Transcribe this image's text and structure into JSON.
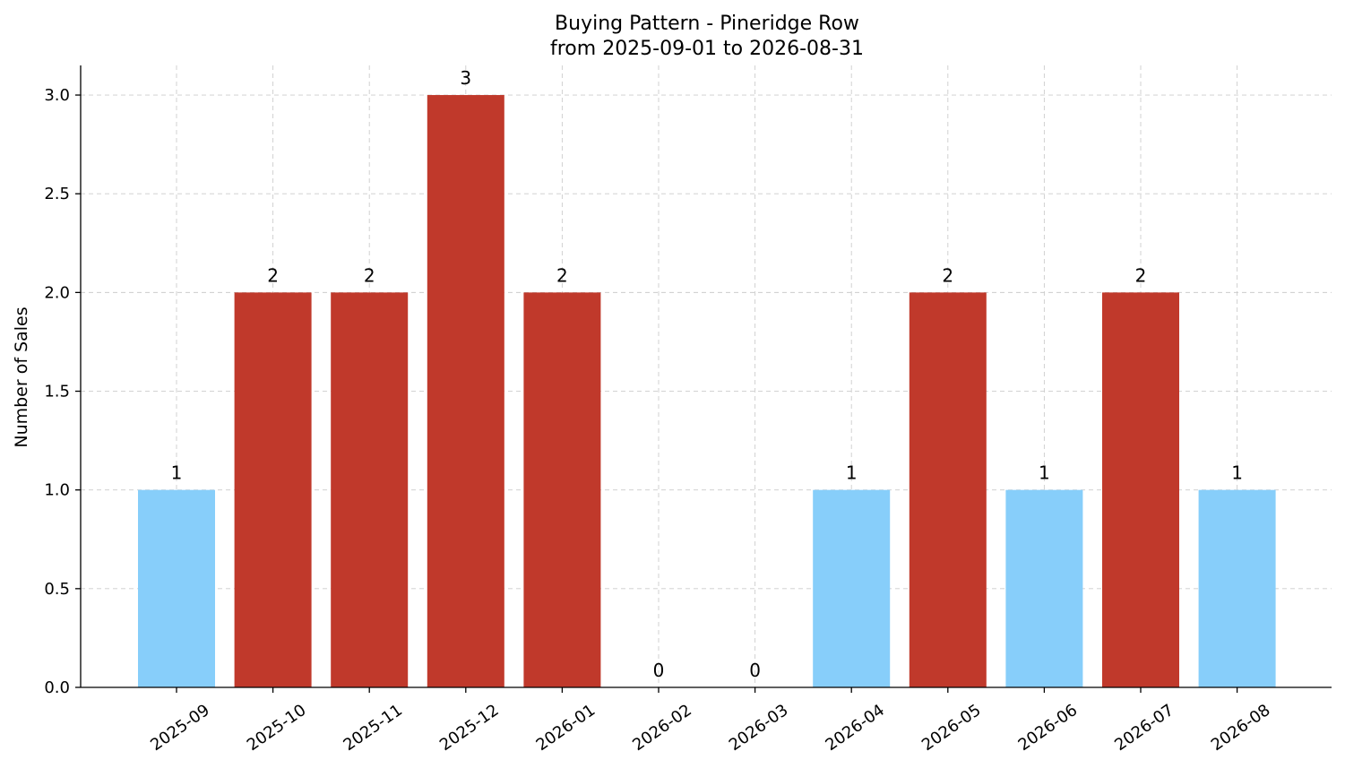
{
  "chart_data": {
    "type": "bar",
    "title": "Buying Pattern - Pineridge Row",
    "subtitle": "from 2025-09-01 to 2026-08-31",
    "xlabel": "",
    "ylabel": "Number of Sales",
    "categories": [
      "2025-09",
      "2025-10",
      "2025-11",
      "2025-12",
      "2026-01",
      "2026-02",
      "2026-03",
      "2026-04",
      "2026-05",
      "2026-06",
      "2026-07",
      "2026-08"
    ],
    "values": [
      1,
      2,
      2,
      3,
      2,
      0,
      0,
      1,
      2,
      1,
      2,
      1
    ],
    "data_labels": [
      "1",
      "2",
      "2",
      "3",
      "2",
      "0",
      "0",
      "1",
      "2",
      "1",
      "2",
      "1"
    ],
    "ylim": [
      0,
      3.15
    ],
    "yticks": [
      0.0,
      0.5,
      1.0,
      1.5,
      2.0,
      2.5,
      3.0
    ],
    "ytick_labels": [
      "0.0",
      "0.5",
      "1.0",
      "1.5",
      "2.0",
      "2.5",
      "3.0"
    ],
    "grid": true,
    "colors": {
      "high": "#c0392b",
      "low": "#87cefa",
      "grid": "#cccccc",
      "axis": "#000000"
    },
    "color_rule": "values >= 2 drawn in high color, otherwise low color"
  }
}
